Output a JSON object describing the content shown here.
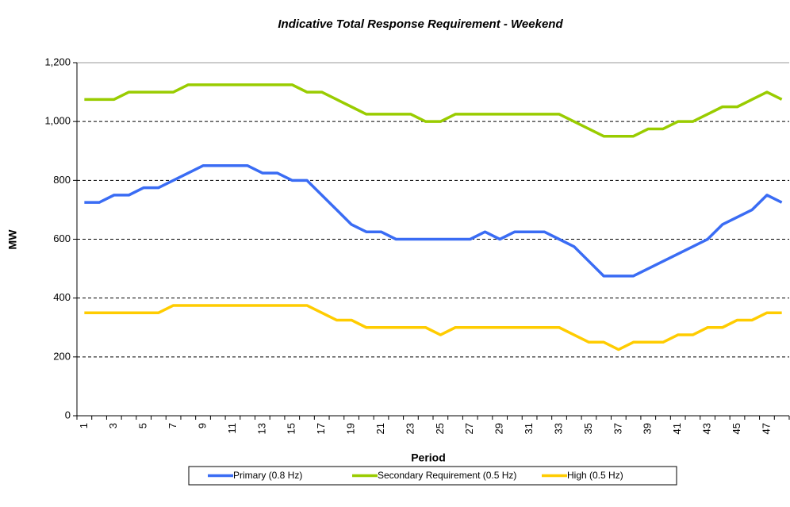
{
  "chart_data": {
    "type": "line",
    "title": "Indicative Total Response Requirement - Weekend",
    "x_label": "Period",
    "y_label": "MW",
    "categories": [
      1,
      null,
      3,
      null,
      5,
      null,
      7,
      null,
      9,
      null,
      11,
      null,
      13,
      null,
      15,
      null,
      17,
      null,
      19,
      null,
      21,
      null,
      23,
      null,
      25,
      null,
      27,
      null,
      29,
      null,
      31,
      null,
      33,
      null,
      35,
      null,
      37,
      null,
      39,
      null,
      41,
      null,
      43,
      null,
      45,
      null,
      47,
      null
    ],
    "series": [
      {
        "name": "Primary (0.8 Hz)",
        "color": "#3a6cf4",
        "values": [
          725,
          725,
          750,
          750,
          775,
          775,
          800,
          825,
          850,
          850,
          850,
          850,
          825,
          825,
          800,
          800,
          750,
          700,
          650,
          625,
          625,
          600,
          600,
          600,
          600,
          600,
          600,
          625,
          600,
          625,
          625,
          625,
          600,
          575,
          525,
          475,
          475,
          475,
          500,
          525,
          550,
          575,
          600,
          650,
          675,
          700,
          750,
          725
        ]
      },
      {
        "name": "Secondary Requirement (0.5 Hz)",
        "color": "#99cc00",
        "values": [
          1075,
          1075,
          1075,
          1100,
          1100,
          1100,
          1100,
          1125,
          1125,
          1125,
          1125,
          1125,
          1125,
          1125,
          1125,
          1100,
          1100,
          1075,
          1050,
          1025,
          1025,
          1025,
          1025,
          1000,
          1000,
          1025,
          1025,
          1025,
          1025,
          1025,
          1025,
          1025,
          1025,
          1000,
          975,
          950,
          950,
          950,
          975,
          975,
          1000,
          1000,
          1025,
          1050,
          1050,
          1075,
          1100,
          1075
        ]
      },
      {
        "name": "High (0.5 Hz)",
        "color": "#ffcc00",
        "values": [
          350,
          350,
          350,
          350,
          350,
          350,
          375,
          375,
          375,
          375,
          375,
          375,
          375,
          375,
          375,
          375,
          350,
          325,
          325,
          300,
          300,
          300,
          300,
          300,
          275,
          300,
          300,
          300,
          300,
          300,
          300,
          300,
          300,
          275,
          250,
          250,
          225,
          250,
          250,
          250,
          275,
          275,
          300,
          300,
          325,
          325,
          350,
          350
        ]
      }
    ],
    "ylim": [
      0,
      1200
    ],
    "yticks": [
      0,
      200,
      400,
      600,
      800,
      {
        "value": 1000,
        "label": "1,000"
      },
      {
        "value": 1200,
        "label": "1,200"
      }
    ],
    "grid": true
  }
}
